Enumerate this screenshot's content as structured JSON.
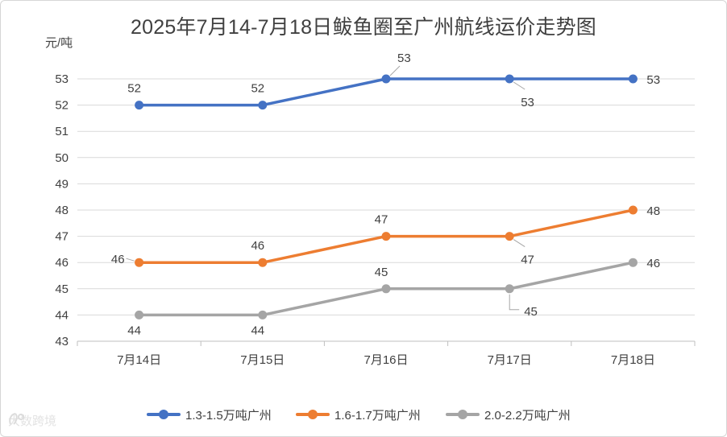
{
  "chart_data": {
    "type": "line",
    "title": "2025年7月14-7月18日鲅鱼圈至广州航线运价走势图",
    "ylabel": "元/吨",
    "xlabel": "",
    "categories": [
      "7月14日",
      "7月15日",
      "7月16日",
      "7月17日",
      "7月18日"
    ],
    "ylim": [
      43,
      53
    ],
    "yticks": [
      43,
      44,
      45,
      46,
      47,
      48,
      49,
      50,
      51,
      52,
      53
    ],
    "grid": true,
    "legend_position": "bottom",
    "series": [
      {
        "name": "1.3-1.5万吨广州",
        "color": "#4472c4",
        "values": [
          52,
          52,
          53,
          53,
          53
        ]
      },
      {
        "name": "1.6-1.7万吨广州",
        "color": "#ed7d31",
        "values": [
          46,
          46,
          47,
          47,
          48
        ]
      },
      {
        "name": "2.0-2.2万吨广州",
        "color": "#a5a5a5",
        "values": [
          44,
          44,
          45,
          45,
          46
        ]
      }
    ]
  },
  "watermark": {
    "text": "大数跨境",
    "logo_icon": "brand-logo-icon"
  }
}
